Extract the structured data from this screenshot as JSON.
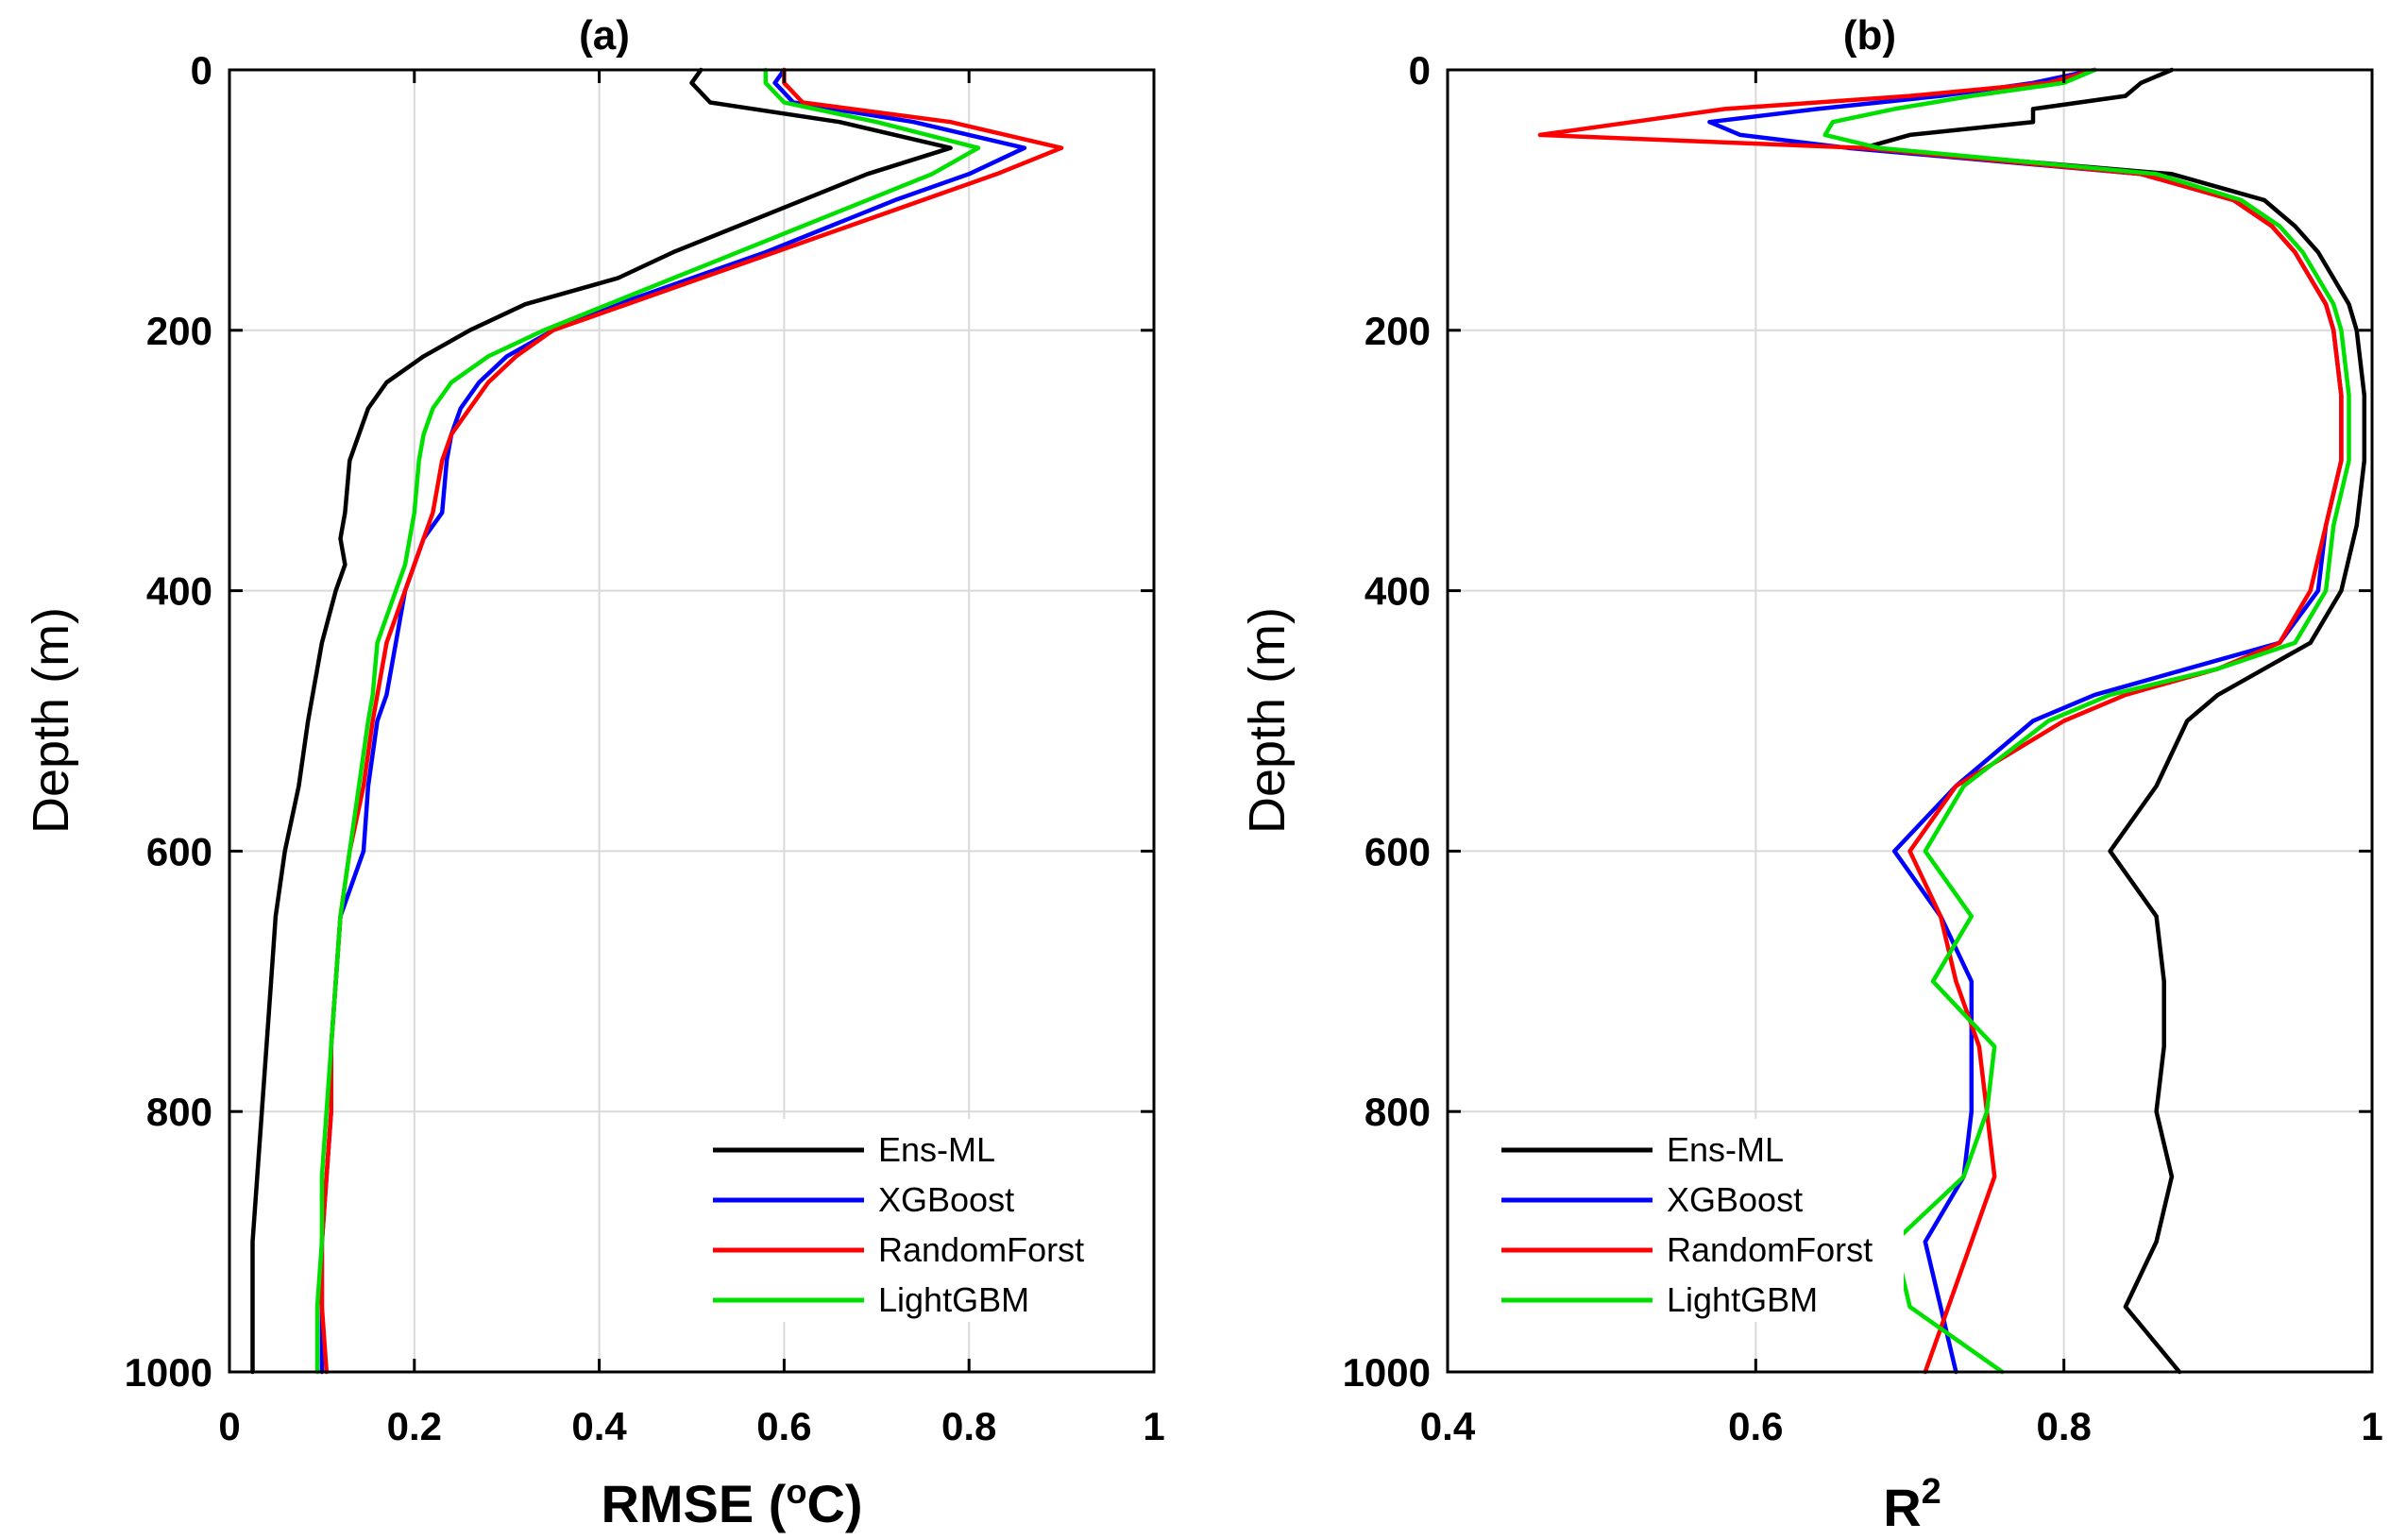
{
  "chart_data": [
    {
      "type": "line",
      "panel": "(a)",
      "title": "(a)",
      "xlabel": "RMSE (",
      "xlabel_sup": "o",
      "xlabel_tail": "C)",
      "ylabel": "Depth (m)",
      "xlim": [
        0,
        1
      ],
      "ylim": [
        1000,
        0
      ],
      "xticks": [
        0,
        0.2,
        0.4,
        0.6,
        0.8,
        1
      ],
      "xtick_labels": [
        "0",
        "0.2",
        "0.4",
        "0.6",
        "0.8",
        "1"
      ],
      "yticks": [
        0,
        200,
        400,
        600,
        800,
        1000
      ],
      "ytick_labels": [
        "0",
        "200",
        "400",
        "600",
        "800",
        "1000"
      ],
      "grid": true,
      "legend": "bottom-right",
      "depth": [
        0,
        10,
        25,
        40,
        60,
        80,
        100,
        120,
        140,
        160,
        180,
        200,
        220,
        240,
        260,
        280,
        300,
        340,
        360,
        380,
        400,
        440,
        480,
        500,
        550,
        600,
        650,
        700,
        750,
        800,
        850,
        900,
        950,
        1000
      ],
      "series": [
        {
          "name": "Ens-ML",
          "color": "#000000",
          "values": [
            0.51,
            0.5,
            0.52,
            0.66,
            0.78,
            0.69,
            0.62,
            0.55,
            0.48,
            0.42,
            0.32,
            0.26,
            0.21,
            0.17,
            0.15,
            0.14,
            0.13,
            0.125,
            0.12,
            0.125,
            0.115,
            0.1,
            0.09,
            0.085,
            0.075,
            0.06,
            0.05,
            0.045,
            0.04,
            0.035,
            0.03,
            0.025,
            0.025,
            0.025
          ]
        },
        {
          "name": "XGBoost",
          "color": "#0000ff",
          "values": [
            0.6,
            0.59,
            0.61,
            0.74,
            0.86,
            0.8,
            0.72,
            0.65,
            0.58,
            0.5,
            0.42,
            0.35,
            0.3,
            0.27,
            0.25,
            0.24,
            0.235,
            0.23,
            0.21,
            0.2,
            0.19,
            0.18,
            0.17,
            0.16,
            0.15,
            0.145,
            0.12,
            0.115,
            0.11,
            0.11,
            0.105,
            0.1,
            0.1,
            0.1
          ]
        },
        {
          "name": "RandomForst",
          "color": "#ff0000",
          "values": [
            0.6,
            0.6,
            0.62,
            0.78,
            0.9,
            0.83,
            0.75,
            0.67,
            0.59,
            0.51,
            0.43,
            0.35,
            0.31,
            0.28,
            0.26,
            0.24,
            0.23,
            0.22,
            0.21,
            0.2,
            0.19,
            0.17,
            0.16,
            0.155,
            0.145,
            0.13,
            0.12,
            0.115,
            0.11,
            0.11,
            0.105,
            0.1,
            0.1,
            0.105
          ]
        },
        {
          "name": "LightGBM",
          "color": "#00e000",
          "values": [
            0.58,
            0.58,
            0.6,
            0.7,
            0.81,
            0.76,
            0.69,
            0.62,
            0.55,
            0.48,
            0.41,
            0.34,
            0.28,
            0.24,
            0.22,
            0.21,
            0.205,
            0.2,
            0.195,
            0.19,
            0.18,
            0.16,
            0.155,
            0.15,
            0.14,
            0.13,
            0.12,
            0.115,
            0.11,
            0.105,
            0.1,
            0.1,
            0.095,
            0.095
          ]
        }
      ]
    },
    {
      "type": "line",
      "panel": "(b)",
      "title": "(b)",
      "xlabel": "R",
      "xlabel_sup": "2",
      "ylabel": "Depth (m)",
      "xlim": [
        0.4,
        1
      ],
      "ylim": [
        1000,
        0
      ],
      "xticks": [
        0.4,
        0.6,
        0.8,
        1
      ],
      "xtick_labels": [
        "0.4",
        "0.6",
        "0.8",
        "1"
      ],
      "yticks": [
        0,
        200,
        400,
        600,
        800,
        1000
      ],
      "ytick_labels": [
        "0",
        "200",
        "400",
        "600",
        "800",
        "1000"
      ],
      "grid": true,
      "legend": "bottom-left",
      "depth": [
        0,
        10,
        20,
        30,
        40,
        50,
        60,
        80,
        100,
        120,
        140,
        160,
        180,
        200,
        250,
        300,
        350,
        400,
        440,
        460,
        480,
        500,
        550,
        600,
        650,
        700,
        750,
        800,
        850,
        900,
        950,
        1000
      ],
      "series": [
        {
          "name": "Ens-ML",
          "color": "#000000",
          "values": [
            0.87,
            0.85,
            0.84,
            0.78,
            0.78,
            0.7,
            0.67,
            0.87,
            0.93,
            0.95,
            0.965,
            0.975,
            0.985,
            0.99,
            0.995,
            0.995,
            0.99,
            0.98,
            0.96,
            0.93,
            0.9,
            0.88,
            0.86,
            0.83,
            0.86,
            0.865,
            0.865,
            0.86,
            0.87,
            0.86,
            0.84,
            0.875
          ]
        },
        {
          "name": "XGBoost",
          "color": "#0000ff",
          "values": [
            0.82,
            0.78,
            0.72,
            0.64,
            0.57,
            0.59,
            0.66,
            0.85,
            0.91,
            0.935,
            0.95,
            0.96,
            0.97,
            0.975,
            0.98,
            0.98,
            0.97,
            0.965,
            0.94,
            0.88,
            0.82,
            0.78,
            0.73,
            0.69,
            0.72,
            0.74,
            0.74,
            0.74,
            0.735,
            0.71,
            0.72,
            0.73
          ]
        },
        {
          "name": "RandomForst",
          "color": "#ff0000",
          "values": [
            0.82,
            0.79,
            0.7,
            0.58,
            0.52,
            0.46,
            0.67,
            0.85,
            0.91,
            0.935,
            0.95,
            0.96,
            0.97,
            0.975,
            0.98,
            0.98,
            0.97,
            0.96,
            0.94,
            0.9,
            0.84,
            0.8,
            0.73,
            0.7,
            0.72,
            0.73,
            0.745,
            0.75,
            0.755,
            0.74,
            0.725,
            0.71
          ]
        },
        {
          "name": "LightGBM",
          "color": "#00e000",
          "values": [
            0.82,
            0.8,
            0.74,
            0.69,
            0.65,
            0.645,
            0.68,
            0.86,
            0.915,
            0.94,
            0.955,
            0.965,
            0.975,
            0.98,
            0.985,
            0.985,
            0.975,
            0.97,
            0.95,
            0.9,
            0.83,
            0.79,
            0.735,
            0.71,
            0.74,
            0.715,
            0.755,
            0.75,
            0.735,
            0.69,
            0.7,
            0.76
          ]
        }
      ]
    }
  ]
}
